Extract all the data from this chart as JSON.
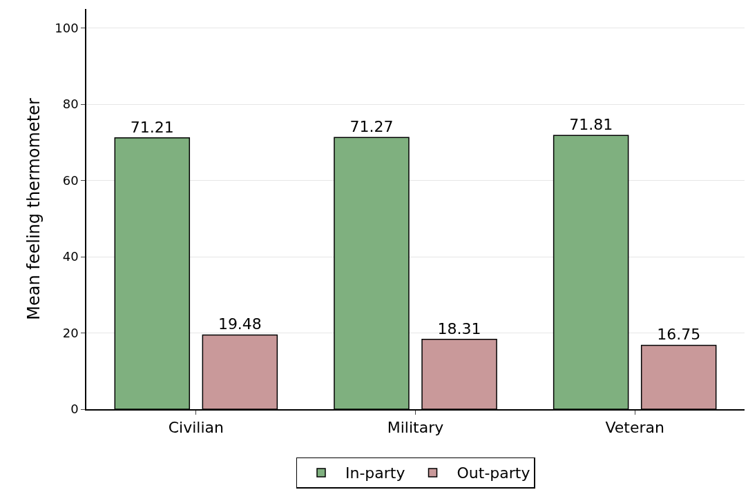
{
  "chart_data": {
    "type": "bar",
    "ylabel": "Mean feeling thermometer",
    "categories": [
      "Civilian",
      "Military",
      "Veteran"
    ],
    "series": [
      {
        "name": "In-party",
        "color": "#7fb07f",
        "values": [
          71.21,
          71.27,
          71.81
        ]
      },
      {
        "name": "Out-party",
        "color": "#c9999a",
        "values": [
          19.48,
          18.31,
          16.75
        ]
      }
    ],
    "ylim": [
      0,
      105
    ],
    "yticks": [
      0,
      20,
      40,
      60,
      80,
      100
    ],
    "grid": "y",
    "legend": "bottom",
    "data_labels": true
  }
}
